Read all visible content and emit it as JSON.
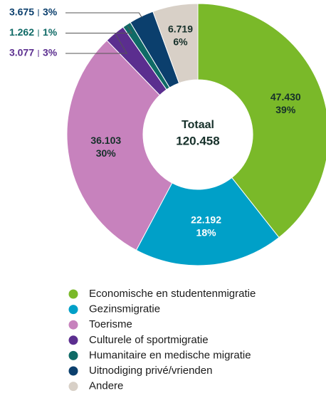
{
  "chart_data": {
    "type": "donut",
    "center_label": "Totaal",
    "total": 120458,
    "total_label": "120.458",
    "categories": [
      "Economische en studentenmigratie",
      "Gezinsmigratie",
      "Toerisme",
      "Culturele of sportmigratie",
      "Humanitaire en medische migratie",
      "Uitnodiging privé/vrienden",
      "Andere"
    ],
    "values": [
      47430,
      22192,
      36103,
      3077,
      1262,
      3675,
      6719
    ],
    "value_labels": [
      "47.430",
      "22.192",
      "36.103",
      "3.077",
      "1.262",
      "3.675",
      "6.719"
    ],
    "percentages": [
      39,
      18,
      30,
      3,
      1,
      3,
      6
    ],
    "percentage_labels": [
      "39%",
      "18%",
      "30%",
      "3%",
      "1%",
      "3%",
      "6%"
    ],
    "colors": [
      "#7ab929",
      "#00a0c8",
      "#c782bd",
      "#5b2e8f",
      "#0f6a66",
      "#0b3f6d",
      "#d8d0c7"
    ],
    "label_colors": [
      "#16302a",
      "#ffffff",
      "#16302a",
      "#5b2e8f",
      "#0f6a66",
      "#0b3f6d",
      "#16302a"
    ],
    "legend": "bottom"
  }
}
